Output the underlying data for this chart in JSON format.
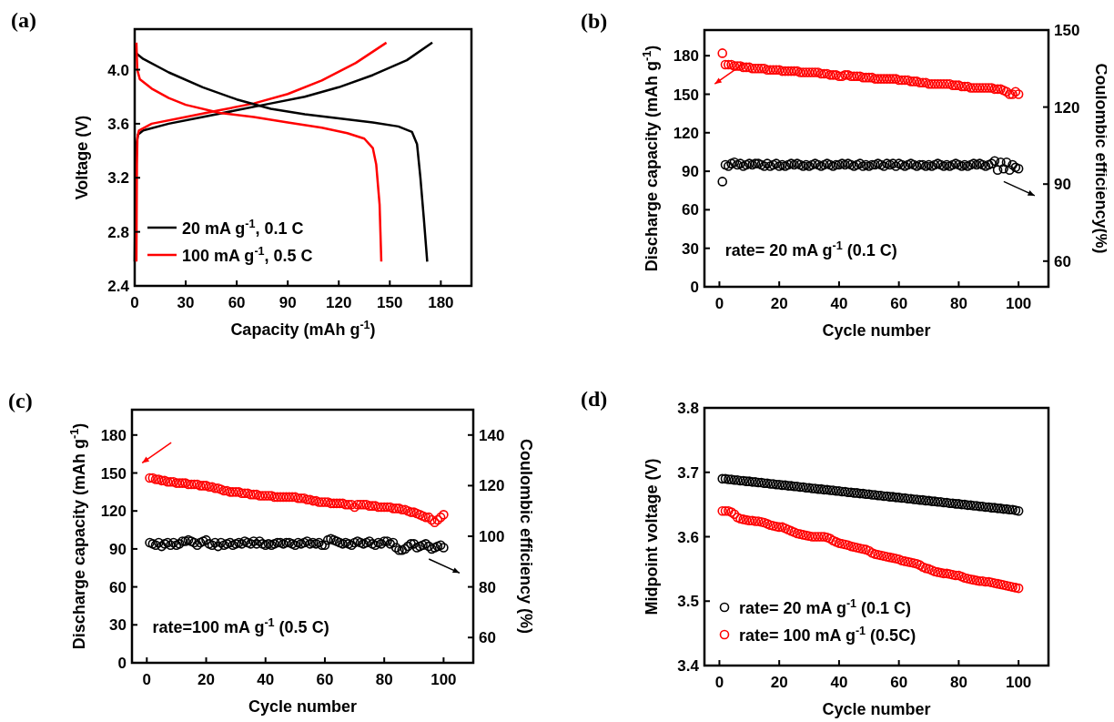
{
  "chart_data": [
    {
      "type": "line",
      "title": "(a)",
      "xlabel": "Capacity (mAh g$^{-1}$)",
      "ylabel": "Voltage (V)",
      "xlim": [
        0,
        198
      ],
      "xticks": [
        0,
        30,
        60,
        90,
        120,
        150,
        180
      ],
      "ylim": [
        2.4,
        4.3
      ],
      "yticks": [
        2.4,
        2.8,
        3.2,
        3.6,
        {
          "value": 4,
          "label": "4.0"
        }
      ],
      "legend": "bottom left",
      "series": [
        {
          "name": "20 mA g$^{-1}$, 0.1 C",
          "color": "#000000",
          "x": [
            0,
            0.5,
            1,
            2,
            5,
            20,
            40,
            60,
            80,
            100,
            120,
            140,
            160,
            175
          ],
          "values": [
            2.58,
            3.3,
            3.45,
            3.52,
            3.55,
            3.6,
            3.65,
            3.7,
            3.75,
            3.8,
            3.87,
            3.96,
            4.07,
            4.2
          ]
        },
        {
          "name": "100 mA g$^{-1}$, 0.5 C",
          "color": "#ff0000",
          "x": [
            1,
            1.3,
            1.6,
            2.5,
            10,
            30,
            50,
            70,
            90,
            110,
            130,
            148
          ],
          "values": [
            2.58,
            3.3,
            3.5,
            3.55,
            3.6,
            3.65,
            3.7,
            3.75,
            3.82,
            3.92,
            4.05,
            4.2
          ]
        },
        {
          "color": "#000000",
          "x": [
            0,
            5,
            20,
            40,
            60,
            80,
            100,
            120,
            140,
            155,
            163,
            166,
            168,
            170,
            172
          ],
          "values": [
            4.13,
            4.08,
            3.98,
            3.87,
            3.78,
            3.71,
            3.67,
            3.64,
            3.61,
            3.58,
            3.54,
            3.45,
            3.2,
            2.9,
            2.58
          ]
        },
        {
          "color": "#ff0000",
          "x": [
            1,
            1.5,
            3,
            10,
            20,
            30,
            50,
            70,
            90,
            110,
            125,
            135,
            140,
            142,
            144,
            145
          ],
          "values": [
            4.2,
            4.0,
            3.93,
            3.86,
            3.79,
            3.74,
            3.68,
            3.65,
            3.61,
            3.57,
            3.53,
            3.49,
            3.42,
            3.3,
            3.0,
            2.58
          ]
        }
      ]
    },
    {
      "type": "scatter",
      "title": "(b)",
      "xlabel": "Cycle number",
      "ylabel": "Discharge capacity (mAh g$^{-1}$)",
      "y2label": "Coulombic efficiency(%)",
      "xlim": [
        -5,
        110
      ],
      "xticks": [
        0,
        20,
        40,
        60,
        80,
        100
      ],
      "ylim": [
        0,
        200
      ],
      "yticks": [
        0,
        30,
        60,
        90,
        120,
        150,
        180
      ],
      "y2lim": [
        50,
        150
      ],
      "y2ticks": [
        60,
        90,
        120,
        150
      ],
      "marker": "circle",
      "annotations": [
        "rate= 20 mA g$^{-1}$ (0.1 C)"
      ],
      "x": [
        1,
        2,
        3,
        4,
        5,
        6,
        7,
        8,
        9,
        10,
        11,
        12,
        13,
        14,
        15,
        16,
        17,
        18,
        19,
        20,
        21,
        22,
        23,
        24,
        25,
        26,
        27,
        28,
        29,
        30,
        31,
        32,
        33,
        34,
        35,
        36,
        37,
        38,
        39,
        40,
        41,
        42,
        43,
        44,
        45,
        46,
        47,
        48,
        49,
        50,
        51,
        52,
        53,
        54,
        55,
        56,
        57,
        58,
        59,
        60,
        61,
        62,
        63,
        64,
        65,
        66,
        67,
        68,
        69,
        70,
        71,
        72,
        73,
        74,
        75,
        76,
        77,
        78,
        79,
        80,
        81,
        82,
        83,
        84,
        85,
        86,
        87,
        88,
        89,
        90,
        91,
        92,
        93,
        94,
        95,
        96,
        97,
        98,
        99,
        100
      ],
      "series": [
        {
          "color": "#ff0000",
          "values": [
            182,
            173,
            173,
            173,
            172,
            172,
            172,
            171,
            171,
            171,
            170,
            170,
            170,
            170,
            170,
            169,
            169,
            169,
            169,
            169,
            168,
            168,
            168,
            168,
            168,
            168,
            167,
            167,
            167,
            167,
            167,
            167,
            167,
            166,
            166,
            166,
            165,
            165,
            165,
            164,
            164,
            165,
            165,
            164,
            164,
            164,
            164,
            163,
            163,
            163,
            163,
            162,
            162,
            162,
            162,
            162,
            162,
            162,
            162,
            161,
            161,
            161,
            161,
            160,
            160,
            160,
            159,
            159,
            159,
            158,
            158,
            158,
            158,
            158,
            158,
            158,
            158,
            157,
            157,
            157,
            156,
            156,
            156,
            155,
            155,
            155,
            155,
            155,
            155,
            155,
            155,
            154,
            154,
            154,
            153,
            152,
            150,
            150,
            152,
            150
          ]
        },
        {
          "color": "#000000",
          "axis": "y2",
          "values": [
            91,
            97.5,
            97,
            98,
            98.5,
            97.5,
            98,
            97,
            97.5,
            98,
            97.5,
            98,
            98,
            97.5,
            97,
            98,
            97,
            97.5,
            98,
            97,
            97.5,
            97,
            97.5,
            98,
            97.5,
            98,
            97.5,
            97,
            97.5,
            97,
            97.5,
            98,
            97.5,
            97,
            97.5,
            98,
            97.5,
            97,
            97.5,
            97.5,
            98,
            97.5,
            98,
            97.5,
            97,
            97.5,
            98,
            97,
            97.5,
            97,
            97.5,
            97.5,
            98,
            97.5,
            97,
            98,
            97.5,
            98,
            97,
            98,
            97.5,
            97,
            97.5,
            98,
            97.5,
            97,
            97.5,
            97.5,
            97,
            97.5,
            97,
            97.5,
            98,
            97.5,
            97,
            97.5,
            97,
            97.5,
            98,
            97.5,
            97,
            97.5,
            97,
            97.5,
            98,
            97.5,
            98,
            97.5,
            97,
            97.5,
            98,
            99,
            95.5,
            98.5,
            96,
            98.5,
            95.5,
            97.5,
            96.5,
            96
          ]
        }
      ]
    },
    {
      "type": "scatter",
      "title": "(c)",
      "xlabel": "Cycle number",
      "ylabel": "Discharge capacity (mAh g$^{-1}$)",
      "y2label": "Coulombic efficiency (%)",
      "xlim": [
        -5,
        110
      ],
      "xticks": [
        0,
        20,
        40,
        60,
        80,
        100
      ],
      "ylim": [
        0,
        200
      ],
      "yticks": [
        0,
        30,
        60,
        90,
        120,
        150,
        180
      ],
      "y2lim": [
        50,
        150
      ],
      "y2ticks": [
        60,
        80,
        100,
        120,
        140
      ],
      "marker": "circle",
      "annotations": [
        "rate=100 mA g$^{-1}$ (0.5 C)"
      ],
      "x": [
        1,
        2,
        3,
        4,
        5,
        6,
        7,
        8,
        9,
        10,
        11,
        12,
        13,
        14,
        15,
        16,
        17,
        18,
        19,
        20,
        21,
        22,
        23,
        24,
        25,
        26,
        27,
        28,
        29,
        30,
        31,
        32,
        33,
        34,
        35,
        36,
        37,
        38,
        39,
        40,
        41,
        42,
        43,
        44,
        45,
        46,
        47,
        48,
        49,
        50,
        51,
        52,
        53,
        54,
        55,
        56,
        57,
        58,
        59,
        60,
        61,
        62,
        63,
        64,
        65,
        66,
        67,
        68,
        69,
        70,
        71,
        72,
        73,
        74,
        75,
        76,
        77,
        78,
        79,
        80,
        81,
        82,
        83,
        84,
        85,
        86,
        87,
        88,
        89,
        90,
        91,
        92,
        93,
        94,
        95,
        96,
        97,
        98,
        99,
        100
      ],
      "series": [
        {
          "color": "#ff0000",
          "values": [
            146,
            146,
            145,
            145,
            144,
            144,
            143,
            143,
            143,
            142,
            142,
            142,
            142,
            141,
            141,
            141,
            141,
            140,
            140,
            140,
            139,
            139,
            138,
            138,
            137,
            136,
            136,
            135,
            135,
            135,
            135,
            134,
            134,
            134,
            133,
            133,
            133,
            132,
            132,
            132,
            132,
            132,
            131,
            131,
            131,
            131,
            131,
            131,
            131,
            131,
            130,
            130,
            130,
            129,
            129,
            128,
            128,
            127,
            127,
            127,
            127,
            126,
            126,
            126,
            126,
            126,
            125,
            125,
            125,
            123,
            125,
            125,
            125,
            125,
            124,
            124,
            124,
            123,
            123,
            123,
            123,
            123,
            122,
            122,
            122,
            121,
            121,
            120,
            119,
            119,
            118,
            117,
            116,
            115,
            115,
            113,
            111,
            113,
            115,
            117
          ]
        },
        {
          "color": "#000000",
          "axis": "y2",
          "values": [
            97.5,
            97,
            96.5,
            97.5,
            96,
            97,
            97.5,
            96.5,
            97.5,
            96.5,
            97,
            98,
            98,
            98.5,
            98,
            97.5,
            96.5,
            97.5,
            98,
            98.5,
            97,
            96.5,
            97.5,
            96,
            97.5,
            96.5,
            97,
            97.5,
            96.5,
            97,
            97.5,
            97,
            98,
            97.5,
            97,
            98,
            97,
            98,
            97,
            96.5,
            97,
            96.5,
            97,
            97.5,
            97.5,
            97,
            97.5,
            97.5,
            97,
            96.5,
            97.5,
            97,
            97.5,
            98,
            97,
            97.5,
            97,
            97.5,
            96.5,
            96.5,
            98.5,
            99,
            98.5,
            98,
            97.5,
            97,
            97.5,
            97,
            96.5,
            97.5,
            98,
            97.5,
            97,
            97.5,
            98,
            97,
            96.5,
            97.5,
            97,
            98,
            98,
            97,
            97.5,
            95.5,
            94.5,
            94.5,
            95,
            96,
            97,
            97,
            95.5,
            96,
            96.5,
            97,
            96,
            95,
            95.5,
            96,
            96.5,
            95.5
          ]
        }
      ]
    },
    {
      "type": "scatter",
      "title": "(d)",
      "xlabel": "Cycle number",
      "ylabel": "Midpoint voltage (V)",
      "xlim": [
        -5,
        110
      ],
      "xticks": [
        0,
        20,
        40,
        60,
        80,
        100
      ],
      "ylim": [
        3.4,
        3.8
      ],
      "yticks": [
        3.4,
        3.5,
        3.6,
        3.7,
        3.8
      ],
      "marker": "circle",
      "legend": "bottom left",
      "x": [
        1,
        2,
        3,
        4,
        5,
        6,
        7,
        8,
        9,
        10,
        11,
        12,
        13,
        14,
        15,
        16,
        17,
        18,
        19,
        20,
        21,
        22,
        23,
        24,
        25,
        26,
        27,
        28,
        29,
        30,
        31,
        32,
        33,
        34,
        35,
        36,
        37,
        38,
        39,
        40,
        41,
        42,
        43,
        44,
        45,
        46,
        47,
        48,
        49,
        50,
        51,
        52,
        53,
        54,
        55,
        56,
        57,
        58,
        59,
        60,
        61,
        62,
        63,
        64,
        65,
        66,
        67,
        68,
        69,
        70,
        71,
        72,
        73,
        74,
        75,
        76,
        77,
        78,
        79,
        80,
        81,
        82,
        83,
        84,
        85,
        86,
        87,
        88,
        89,
        90,
        91,
        92,
        93,
        94,
        95,
        96,
        97,
        98,
        99,
        100
      ],
      "series": [
        {
          "name": "rate= 20 mA g$^{-1}$ (0.1 C)",
          "color": "#000000",
          "values": [
            3.69,
            3.69,
            3.689,
            3.689,
            3.688,
            3.688,
            3.687,
            3.687,
            3.686,
            3.686,
            3.685,
            3.685,
            3.684,
            3.684,
            3.683,
            3.683,
            3.682,
            3.682,
            3.681,
            3.681,
            3.68,
            3.68,
            3.679,
            3.679,
            3.678,
            3.678,
            3.677,
            3.677,
            3.676,
            3.676,
            3.675,
            3.675,
            3.674,
            3.674,
            3.673,
            3.673,
            3.672,
            3.672,
            3.671,
            3.671,
            3.67,
            3.67,
            3.669,
            3.669,
            3.668,
            3.668,
            3.667,
            3.667,
            3.666,
            3.666,
            3.665,
            3.665,
            3.664,
            3.664,
            3.663,
            3.663,
            3.662,
            3.662,
            3.661,
            3.661,
            3.66,
            3.66,
            3.659,
            3.659,
            3.658,
            3.658,
            3.657,
            3.657,
            3.656,
            3.656,
            3.655,
            3.655,
            3.654,
            3.654,
            3.653,
            3.653,
            3.652,
            3.652,
            3.651,
            3.651,
            3.65,
            3.65,
            3.649,
            3.649,
            3.648,
            3.648,
            3.647,
            3.647,
            3.646,
            3.646,
            3.645,
            3.645,
            3.644,
            3.644,
            3.643,
            3.643,
            3.642,
            3.642,
            3.641,
            3.64
          ]
        },
        {
          "name": "rate= 100 mA g$^{-1}$ (0.5C)",
          "color": "#ff0000",
          "values": [
            3.64,
            3.64,
            3.64,
            3.638,
            3.635,
            3.63,
            3.628,
            3.627,
            3.626,
            3.625,
            3.625,
            3.624,
            3.624,
            3.623,
            3.622,
            3.62,
            3.618,
            3.617,
            3.616,
            3.615,
            3.615,
            3.613,
            3.611,
            3.609,
            3.607,
            3.605,
            3.604,
            3.603,
            3.602,
            3.601,
            3.6,
            3.6,
            3.6,
            3.6,
            3.6,
            3.599,
            3.597,
            3.594,
            3.592,
            3.59,
            3.589,
            3.588,
            3.587,
            3.585,
            3.584,
            3.583,
            3.582,
            3.581,
            3.58,
            3.578,
            3.575,
            3.573,
            3.572,
            3.571,
            3.57,
            3.569,
            3.568,
            3.567,
            3.566,
            3.565,
            3.563,
            3.562,
            3.561,
            3.56,
            3.559,
            3.558,
            3.556,
            3.553,
            3.551,
            3.55,
            3.548,
            3.546,
            3.545,
            3.544,
            3.543,
            3.543,
            3.542,
            3.541,
            3.54,
            3.54,
            3.538,
            3.536,
            3.535,
            3.534,
            3.533,
            3.532,
            3.531,
            3.531,
            3.53,
            3.53,
            3.529,
            3.528,
            3.527,
            3.526,
            3.525,
            3.524,
            3.523,
            3.522,
            3.521,
            3.52
          ]
        }
      ]
    }
  ]
}
